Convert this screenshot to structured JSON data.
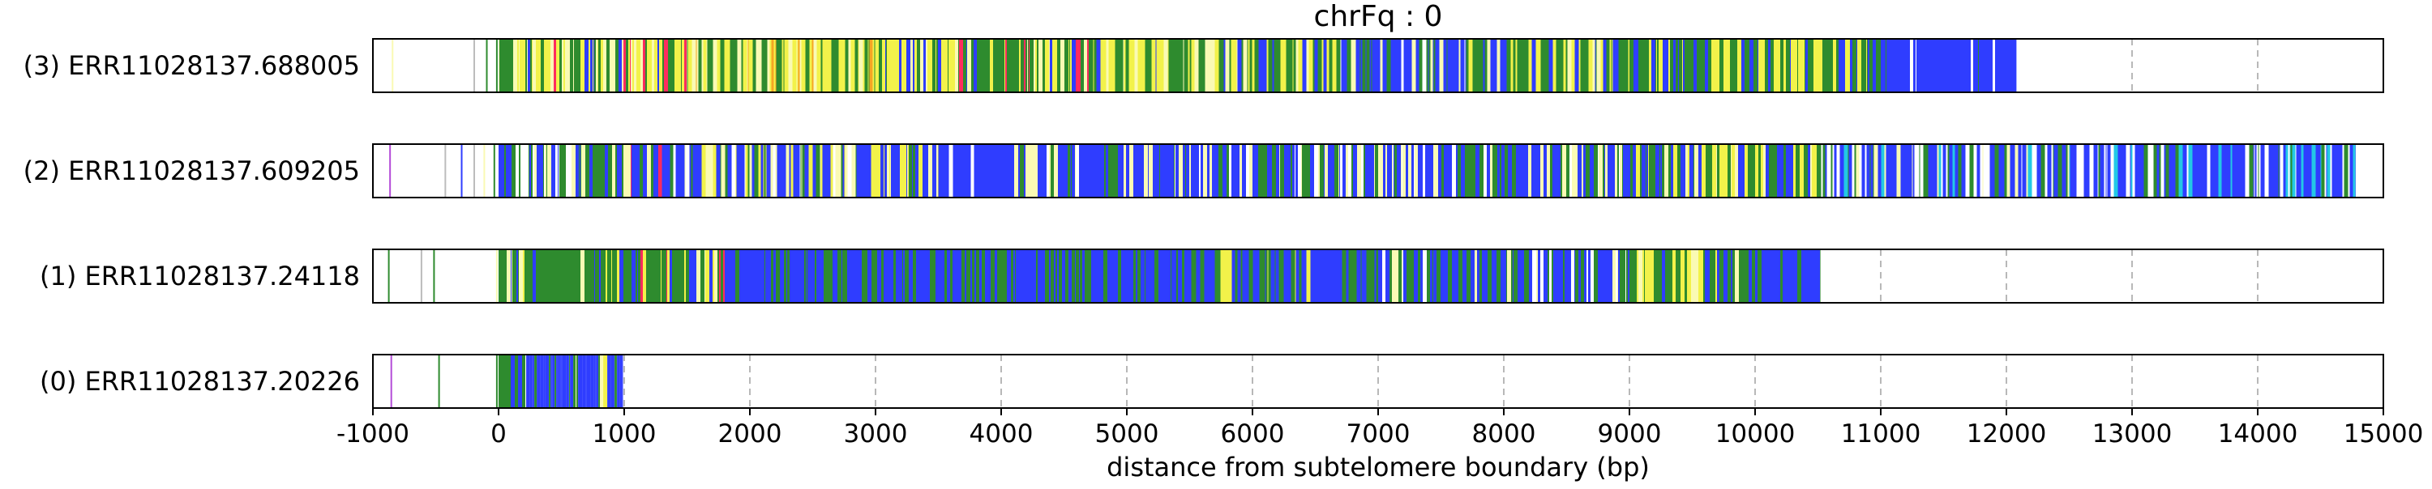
{
  "chart_data": {
    "type": "bar",
    "title": "chrFq : 0",
    "xlabel": "distance from subtelomere boundary (bp)",
    "ylabel": "",
    "xlim": [
      -1000,
      15000
    ],
    "x_ticks": [
      -1000,
      0,
      1000,
      2000,
      3000,
      4000,
      5000,
      6000,
      7000,
      8000,
      9000,
      10000,
      11000,
      12000,
      13000,
      14000,
      15000
    ],
    "x_tick_labels": [
      "-1000",
      "0",
      "1000",
      "2000",
      "3000",
      "4000",
      "5000",
      "6000",
      "7000",
      "8000",
      "9000",
      "10000",
      "11000",
      "12000",
      "13000",
      "14000",
      "15000"
    ],
    "grid": "vertical dashed at x ticks",
    "palette": {
      "blue": "#2f3dff",
      "green": "#2e8b2e",
      "yellow": "#f2f24a",
      "pale": "#fafab4",
      "red": "#ff2b5e",
      "gray": "#bcbcbc",
      "white": "#ffffff",
      "orange": "#f5a623",
      "purple": "#b44cd8",
      "cyan": "#23c8e6"
    },
    "reads": [
      {
        "label": "(3) ERR11028137.688005",
        "end": 12080,
        "prefix": [
          [
            -850,
            "pale"
          ],
          [
            -200,
            "gray"
          ],
          [
            -100,
            "green"
          ],
          [
            -20,
            "green"
          ]
        ],
        "segments": [
          {
            "from": 0,
            "to": 1500,
            "mix": "green:4,yellow:4,pale:2,blue:1,red:1"
          },
          {
            "from": 1500,
            "to": 3000,
            "mix": "yellow:5,green:3,pale:2,orange:1"
          },
          {
            "from": 3000,
            "to": 3400,
            "mix": "green:3,yellow:2,blue:2,pale:1"
          },
          {
            "from": 3400,
            "to": 4700,
            "mix": "green:4,yellow:3,pale:2,red:1,blue:1"
          },
          {
            "from": 4700,
            "to": 5700,
            "mix": "yellow:3,green:3,pale:3,blue:1"
          },
          {
            "from": 5700,
            "to": 6700,
            "mix": "green:3,yellow:3,blue:2,pale:1"
          },
          {
            "from": 6700,
            "to": 7700,
            "mix": "blue:6,green:2,white:1,pale:1"
          },
          {
            "from": 7700,
            "to": 9000,
            "mix": "green:4,yellow:3,blue:2,pale:1"
          },
          {
            "from": 9000,
            "to": 11000,
            "mix": "yellow:3,green:5,blue:2"
          },
          {
            "from": 11000,
            "to": 12080,
            "mix": "blue:8,white:1,green:1"
          }
        ]
      },
      {
        "label": "(2) ERR11028137.609205",
        "end": 14780,
        "prefix": [
          [
            -870,
            "purple"
          ],
          [
            -430,
            "gray"
          ],
          [
            -300,
            "blue"
          ],
          [
            -200,
            "gray"
          ],
          [
            -120,
            "pale"
          ],
          [
            -40,
            "green"
          ]
        ],
        "segments": [
          {
            "from": 0,
            "to": 1000,
            "mix": "blue:4,green:3,pale:2,white:1"
          },
          {
            "from": 1000,
            "to": 1300,
            "mix": "red:2,blue:3,green:2,pale:1"
          },
          {
            "from": 1300,
            "to": 3000,
            "mix": "blue:4,green:3,pale:2,yellow:1,white:1"
          },
          {
            "from": 3000,
            "to": 3500,
            "mix": "blue:4,green:2,yellow:2,pale:1"
          },
          {
            "from": 3500,
            "to": 4000,
            "mix": "blue:9,white:1"
          },
          {
            "from": 4000,
            "to": 7000,
            "mix": "blue:5,green:2,pale:2,white:1"
          },
          {
            "from": 7000,
            "to": 9000,
            "mix": "blue:4,green:3,pale:2,white:1"
          },
          {
            "from": 9000,
            "to": 10500,
            "mix": "yellow:3,green:3,blue:3,pale:1"
          },
          {
            "from": 10500,
            "to": 12500,
            "mix": "blue:4,green:2,white:2,pale:1,cyan:1"
          },
          {
            "from": 12500,
            "to": 14780,
            "mix": "blue:6,white:2,green:1,cyan:1"
          }
        ]
      },
      {
        "label": "(1) ERR11028137.24118",
        "end": 10520,
        "prefix": [
          [
            -880,
            "green"
          ],
          [
            -620,
            "gray"
          ],
          [
            -520,
            "green"
          ],
          [
            -20,
            "pale"
          ]
        ],
        "segments": [
          {
            "from": 0,
            "to": 800,
            "mix": "green:6,blue:2,yellow:1,pale:1"
          },
          {
            "from": 800,
            "to": 1800,
            "mix": "green:4,blue:2,yellow:2,pale:1,red:1"
          },
          {
            "from": 1800,
            "to": 5500,
            "mix": "blue:7,green:3"
          },
          {
            "from": 5500,
            "to": 7000,
            "mix": "blue:5,green:4,yellow:1"
          },
          {
            "from": 7000,
            "to": 9000,
            "mix": "blue:5,green:3,white:1,pale:1"
          },
          {
            "from": 9000,
            "to": 9600,
            "mix": "yellow:4,green:3,pale:2,blue:1"
          },
          {
            "from": 9600,
            "to": 10000,
            "mix": "green:6,blue:2,yellow:1,pale:1"
          },
          {
            "from": 10000,
            "to": 10520,
            "mix": "blue:9,green:1"
          }
        ]
      },
      {
        "label": "(0) ERR11028137.20226",
        "end": 990,
        "prefix": [
          [
            -860,
            "purple"
          ],
          [
            -480,
            "green"
          ],
          [
            -20,
            "green"
          ]
        ],
        "segments": [
          {
            "from": 0,
            "to": 220,
            "mix": "green:5,blue:4,white:1"
          },
          {
            "from": 220,
            "to": 990,
            "mix": "blue:6,green:2,yellow:1,pale:1"
          }
        ]
      }
    ]
  }
}
